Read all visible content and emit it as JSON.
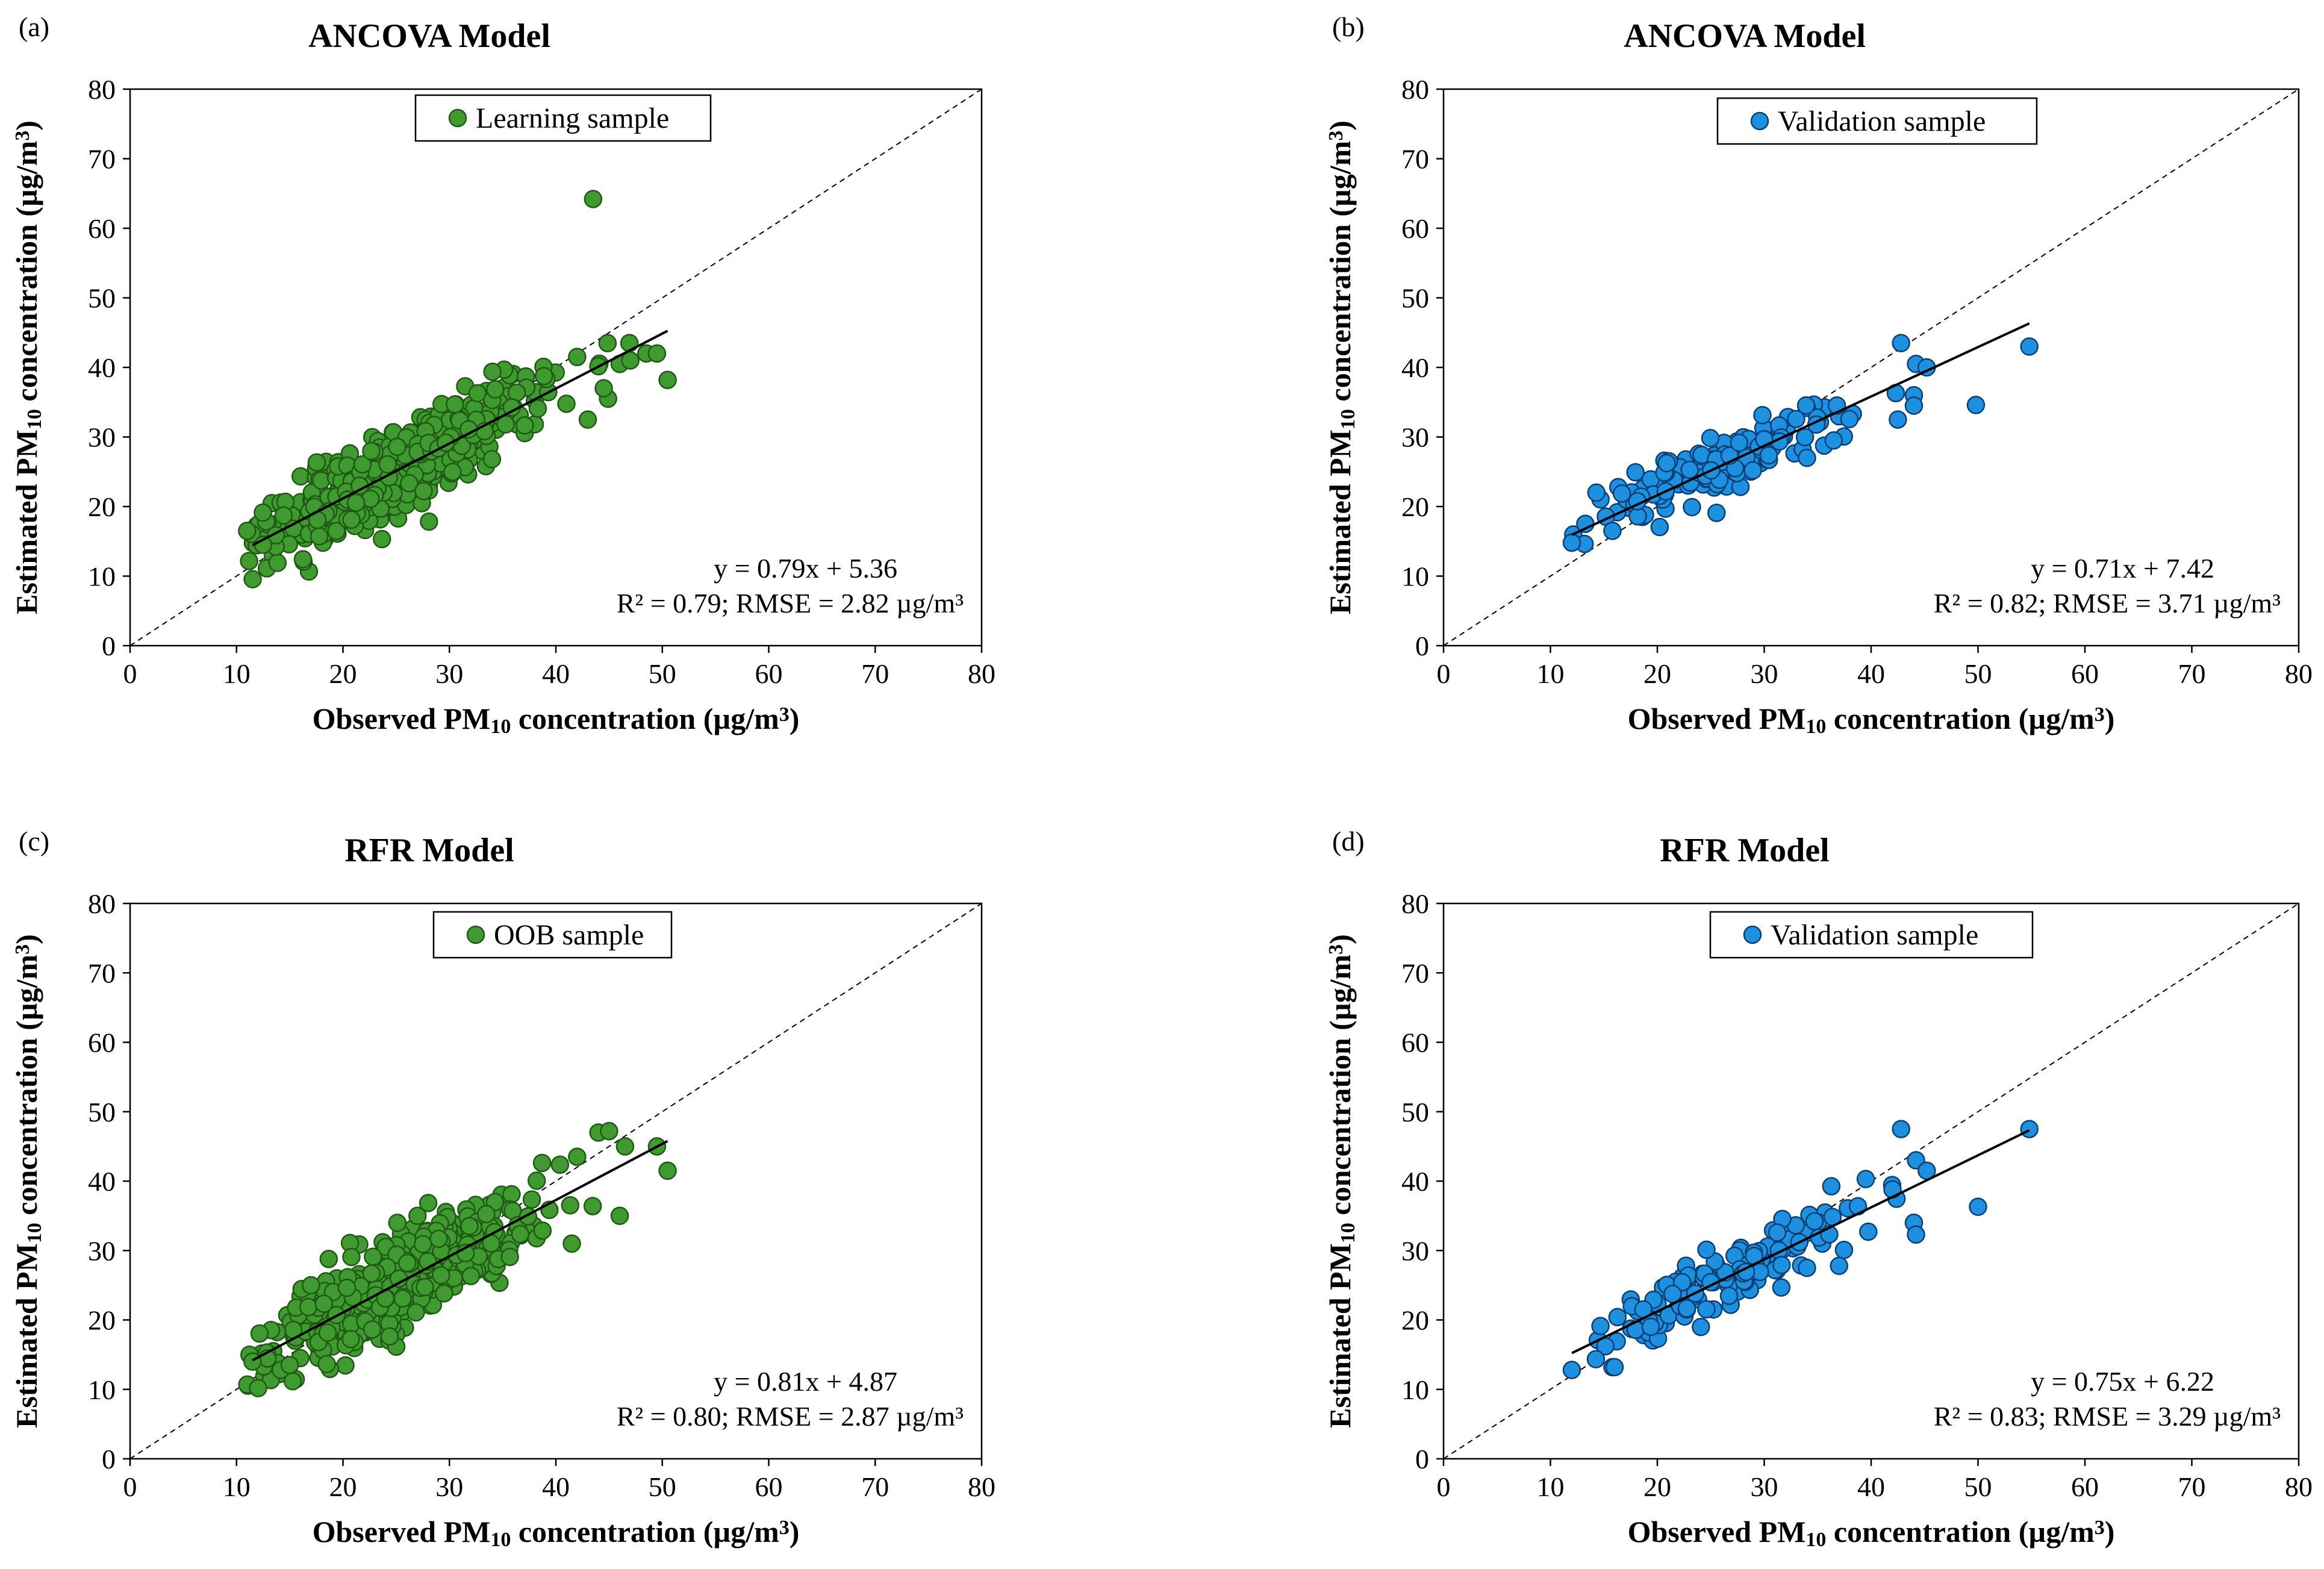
{
  "figure": {
    "panels": [
      {
        "id": "a",
        "letter": "(a)",
        "title": "ANCOVA Model",
        "legend": "Learning sample",
        "marker_color": "#3f9a2f",
        "marker_edge": "#1f5a14",
        "eq_line1": "y = 0.79x + 5.36",
        "eq_line2": "R² = 0.79; RMSE = 2.82 µg/m³",
        "slope": 0.79,
        "intercept": 5.36,
        "fit_x": [
          11.5,
          50.5
        ],
        "n_points": 520,
        "seed": 11,
        "x_mean": 25.5,
        "x_sd": 6.2,
        "x_min": 11,
        "x_max": 49,
        "noise": 2.8,
        "extra_points": [
          [
            43.5,
            64.2
          ],
          [
            50.5,
            38.2
          ],
          [
            48.5,
            42.0
          ],
          [
            49.5,
            42.0
          ],
          [
            44.5,
            37.0
          ],
          [
            43.0,
            32.5
          ],
          [
            42.0,
            41.5
          ],
          [
            46.0,
            40.5
          ],
          [
            47.0,
            41.0
          ],
          [
            11.0,
            16.5
          ],
          [
            12.5,
            14.5
          ]
        ]
      },
      {
        "id": "b",
        "letter": "(b)",
        "title": "ANCOVA Model",
        "legend": "Validation sample",
        "marker_color": "#1e90e0",
        "marker_edge": "#0a3f75",
        "eq_line1": "y = 0.71x + 7.42",
        "eq_line2": "R² = 0.82; RMSE = 3.71 µg/m³",
        "slope": 0.71,
        "intercept": 7.42,
        "fit_x": [
          12,
          54.8
        ],
        "n_points": 140,
        "seed": 23,
        "x_mean": 25.5,
        "x_sd": 5.8,
        "x_min": 12,
        "x_max": 45,
        "noise": 2.2,
        "extra_points": [
          [
            54.8,
            43.0
          ],
          [
            49.8,
            34.6
          ],
          [
            42.8,
            43.5
          ],
          [
            44.2,
            40.5
          ],
          [
            45.2,
            40.0
          ],
          [
            44.0,
            36.0
          ],
          [
            44.0,
            34.5
          ],
          [
            42.5,
            32.5
          ],
          [
            12.0,
            14.8
          ],
          [
            14.3,
            22.0
          ],
          [
            15.8,
            16.5
          ],
          [
            34.0,
            27.0
          ],
          [
            36.5,
            29.5
          ]
        ]
      },
      {
        "id": "c",
        "letter": "(c)",
        "title": "RFR Model",
        "legend": "OOB sample",
        "marker_color": "#3f9a2f",
        "marker_edge": "#1f5a14",
        "eq_line1": "y = 0.81x + 4.87",
        "eq_line2": "R² = 0.80; RMSE = 2.87 µg/m³",
        "slope": 0.81,
        "intercept": 4.87,
        "fit_x": [
          11.5,
          50.5
        ],
        "n_points": 520,
        "seed": 37,
        "x_mean": 25.5,
        "x_sd": 6.2,
        "x_min": 11,
        "x_max": 49,
        "noise": 3.1,
        "extra_points": [
          [
            44.0,
            47.0
          ],
          [
            45.0,
            47.2
          ],
          [
            49.5,
            45.0
          ],
          [
            50.5,
            41.5
          ],
          [
            46.5,
            45.0
          ],
          [
            46.0,
            35.0
          ],
          [
            42.0,
            43.5
          ],
          [
            41.5,
            31.0
          ],
          [
            11.5,
            14.0
          ],
          [
            17.0,
            25.0
          ],
          [
            15.0,
            13.5
          ],
          [
            27.0,
            35.0
          ]
        ]
      },
      {
        "id": "d",
        "letter": "(d)",
        "title": "RFR Model",
        "legend": "Validation sample",
        "marker_color": "#1e90e0",
        "marker_edge": "#0a3f75",
        "eq_line1": "y = 0.75x + 6.22",
        "eq_line2": "R² = 0.83; RMSE = 3.29 µg/m³",
        "slope": 0.75,
        "intercept": 6.22,
        "fit_x": [
          12,
          54.8
        ],
        "n_points": 140,
        "seed": 51,
        "x_mean": 25.5,
        "x_sd": 5.8,
        "x_min": 12,
        "x_max": 45,
        "noise": 2.2,
        "extra_points": [
          [
            54.8,
            47.5
          ],
          [
            50.0,
            36.3
          ],
          [
            42.8,
            47.5
          ],
          [
            44.2,
            43.0
          ],
          [
            45.2,
            41.5
          ],
          [
            44.0,
            34.0
          ],
          [
            44.2,
            32.3
          ],
          [
            42.0,
            38.8
          ],
          [
            39.5,
            40.3
          ],
          [
            12.0,
            12.8
          ],
          [
            15.8,
            13.2
          ],
          [
            16.0,
            13.2
          ],
          [
            37.0,
            27.8
          ],
          [
            34.0,
            27.5
          ]
        ]
      }
    ],
    "axes": {
      "xlabel_prefix": "Observed PM",
      "xlabel_sub": "10",
      "xlabel_suffix": " concentration (µg/m",
      "ylabel_prefix": "Estimated PM",
      "ylabel_sub": "10",
      "ylabel_suffix": " concentration (µg/m",
      "unit_sup": "3",
      "unit_close": ")"
    }
  },
  "chart_data": [
    {
      "type": "scatter",
      "title": "ANCOVA Model",
      "legend": [
        "Learning sample"
      ],
      "xlabel": "Observed PM10 concentration (µg/m³)",
      "ylabel": "Estimated PM10 concentration (µg/m³)",
      "xlim": [
        0,
        80
      ],
      "ylim": [
        0,
        80
      ],
      "xticks": [
        0,
        10,
        20,
        30,
        40,
        50,
        60,
        70,
        80
      ],
      "yticks": [
        0,
        10,
        20,
        30,
        40,
        50,
        60,
        70,
        80
      ],
      "fit": {
        "slope": 0.79,
        "intercept": 5.36,
        "r2": 0.79,
        "rmse": 2.82
      },
      "reference_line": "1:1 dashed",
      "annotations": [
        "y = 0.79x + 5.36",
        "R² = 0.79; RMSE = 2.82 µg/m³"
      ]
    },
    {
      "type": "scatter",
      "title": "ANCOVA Model",
      "legend": [
        "Validation sample"
      ],
      "xlabel": "Observed PM10 concentration (µg/m³)",
      "ylabel": "Estimated PM10 concentration (µg/m³)",
      "xlim": [
        0,
        80
      ],
      "ylim": [
        0,
        80
      ],
      "xticks": [
        0,
        10,
        20,
        30,
        40,
        50,
        60,
        70,
        80
      ],
      "yticks": [
        0,
        10,
        20,
        30,
        40,
        50,
        60,
        70,
        80
      ],
      "fit": {
        "slope": 0.71,
        "intercept": 7.42,
        "r2": 0.82,
        "rmse": 3.71
      },
      "reference_line": "1:1 dashed",
      "annotations": [
        "y = 0.71x + 7.42",
        "R² = 0.82; RMSE = 3.71 µg/m³"
      ]
    },
    {
      "type": "scatter",
      "title": "RFR Model",
      "legend": [
        "OOB sample"
      ],
      "xlabel": "Observed PM10 concentration (µg/m³)",
      "ylabel": "Estimated PM10 concentration (µg/m³)",
      "xlim": [
        0,
        80
      ],
      "ylim": [
        0,
        80
      ],
      "xticks": [
        0,
        10,
        20,
        30,
        40,
        50,
        60,
        70,
        80
      ],
      "yticks": [
        0,
        10,
        20,
        30,
        40,
        50,
        60,
        70,
        80
      ],
      "fit": {
        "slope": 0.81,
        "intercept": 4.87,
        "r2": 0.8,
        "rmse": 2.87
      },
      "reference_line": "1:1 dashed",
      "annotations": [
        "y = 0.81x + 4.87",
        "R² = 0.80; RMSE = 2.87 µg/m³"
      ]
    },
    {
      "type": "scatter",
      "title": "RFR Model",
      "legend": [
        "Validation sample"
      ],
      "xlabel": "Observed PM10 concentration (µg/m³)",
      "ylabel": "Estimated PM10 concentration (µg/m³)",
      "xlim": [
        0,
        80
      ],
      "ylim": [
        0,
        80
      ],
      "xticks": [
        0,
        10,
        20,
        30,
        40,
        50,
        60,
        70,
        80
      ],
      "yticks": [
        0,
        10,
        20,
        30,
        40,
        50,
        60,
        70,
        80
      ],
      "fit": {
        "slope": 0.75,
        "intercept": 6.22,
        "r2": 0.83,
        "rmse": 3.29
      },
      "reference_line": "1:1 dashed",
      "annotations": [
        "y = 0.75x + 6.22",
        "R² = 0.83; RMSE = 3.29 µg/m³"
      ]
    }
  ]
}
